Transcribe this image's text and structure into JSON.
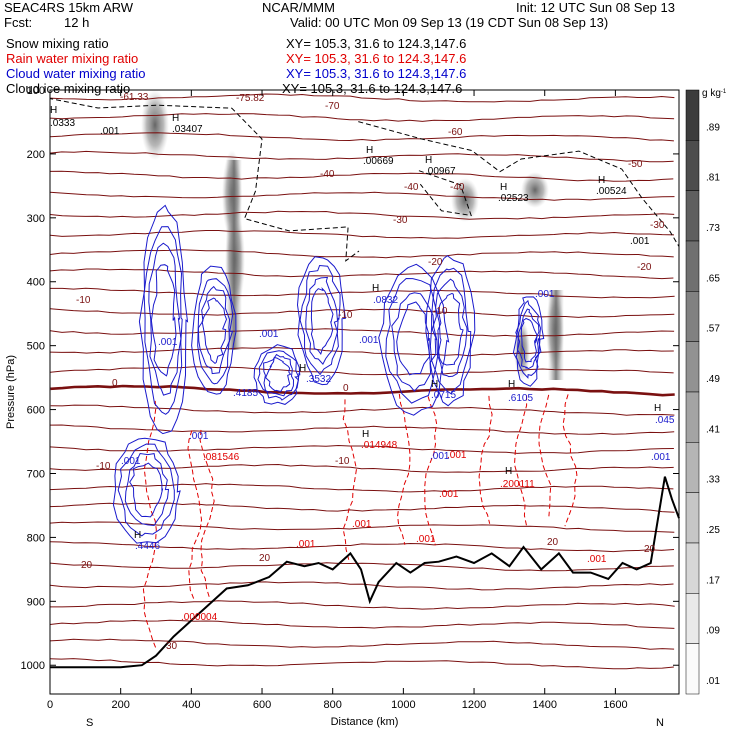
{
  "header": {
    "model": "SEAC4RS 15km ARW",
    "fcst_label": "Fcst:",
    "fcst_value": "12 h",
    "center": "NCAR/MMM",
    "init": "Init: 12 UTC Sun 08 Sep 13",
    "valid": "Valid: 00 UTC Mon 09 Sep 13 (19 CDT Sun 08 Sep 13)",
    "fields": [
      {
        "name": "Snow mixing ratio",
        "xy": "XY= 105.3, 31.6 to 124.3,147.6",
        "color": "#000000"
      },
      {
        "name": "Rain water mixing ratio",
        "xy": "XY= 105.3, 31.6 to 124.3,147.6",
        "color": "#e00000"
      },
      {
        "name": "Cloud water mixing ratio",
        "xy": "XY= 105.3, 31.6 to 124.3,147.6",
        "color": "#0000cc"
      },
      {
        "name": "Cloud ice mixing ratio",
        "xy": "XY= 105.3, 31.6 to 124.3,147.6",
        "color": "#000000"
      }
    ]
  },
  "chart_data": {
    "type": "heatmap",
    "xlabel": "Distance (km)",
    "ylabel": "Pressure (hPa)",
    "xlim": [
      0,
      1780
    ],
    "ylim": [
      1045,
      100
    ],
    "x_ticks": [
      "0",
      "200",
      "400",
      "600",
      "800",
      "1000",
      "1200",
      "1400",
      "1600"
    ],
    "y_ticks": [
      "100",
      "200",
      "300",
      "400",
      "500",
      "600",
      "700",
      "800",
      "900",
      "1000"
    ],
    "x_end_labels": {
      "left": "S",
      "right": "N"
    },
    "colorbar": {
      "unit": "g kg",
      "unit_exp": "-1",
      "levels": [
        ".89",
        ".81",
        ".73",
        ".65",
        ".57",
        ".49",
        ".41",
        ".33",
        ".25",
        ".17",
        ".09",
        ".01"
      ]
    },
    "temperature_labels": [
      "-61.33",
      "-75.82",
      "-70",
      "-60",
      "-50",
      "-40",
      "-40",
      "-40",
      "-30",
      "-30",
      "-20",
      "-20",
      "-10",
      "-10",
      "-10",
      "0",
      "0",
      "-10",
      "-10",
      "20",
      "20",
      "20",
      "20",
      "30"
    ],
    "rain_labels": [
      ".081546",
      ".014948",
      ".200111",
      ".000004",
      ".001",
      ".001",
      ".001",
      ".001",
      ".001",
      ".001"
    ],
    "cloud_water_labels": [
      ".001",
      ".001",
      ".001",
      ".4446",
      ".4185",
      ".3532",
      ".0832",
      ".001",
      ".001",
      ".6105",
      ".0715",
      ".001",
      ".045",
      ".001",
      ".001"
    ],
    "ice_labels": [
      ".0333",
      ".001",
      ".03407",
      ".00669",
      ".00967",
      ".02523",
      ".00524",
      ".001"
    ],
    "H_markers": 14,
    "terrain_km": [
      0,
      200,
      260,
      300,
      350,
      400,
      450,
      500,
      560,
      620,
      670,
      720,
      760,
      800,
      850,
      880,
      905,
      930,
      980,
      1020,
      1060,
      1100,
      1150,
      1200,
      1250,
      1300,
      1340,
      1390,
      1440,
      1480,
      1530,
      1580,
      1620,
      1660,
      1700,
      1740,
      1760,
      1780
    ],
    "terrain_hpa": [
      1003,
      1003,
      1000,
      985,
      955,
      930,
      905,
      880,
      875,
      862,
      838,
      845,
      840,
      850,
      825,
      850,
      900,
      870,
      840,
      855,
      840,
      838,
      830,
      840,
      825,
      845,
      815,
      850,
      825,
      855,
      855,
      865,
      840,
      850,
      840,
      705,
      740,
      770
    ]
  }
}
